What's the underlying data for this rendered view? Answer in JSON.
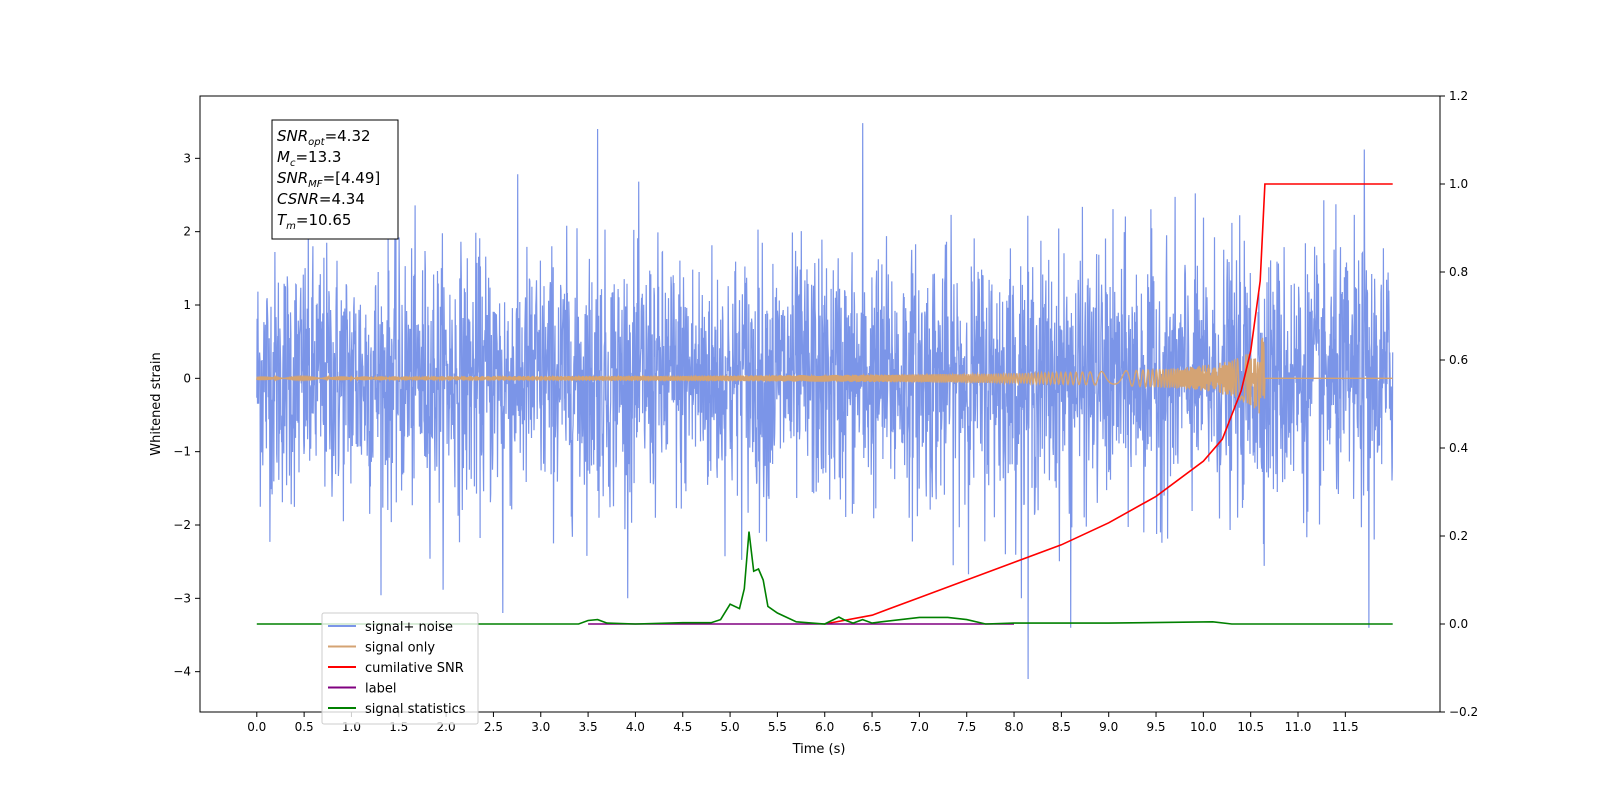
{
  "chart_data": {
    "type": "line",
    "xlabel": "Time (s)",
    "ylabel": "Whitened strain",
    "xlim": [
      -0.6,
      12.5
    ],
    "ylim": [
      -4.55,
      3.85
    ],
    "y2lim": [
      -0.2,
      1.2
    ],
    "x_ticks": [
      0.0,
      0.5,
      1.0,
      1.5,
      2.0,
      2.5,
      3.0,
      3.5,
      4.0,
      4.5,
      5.0,
      5.5,
      6.0,
      6.5,
      7.0,
      7.5,
      8.0,
      8.5,
      9.0,
      9.5,
      10.0,
      10.5,
      11.0,
      11.5
    ],
    "x_tick_labels": [
      "0.0",
      "0.5",
      "1.0",
      "1.5",
      "2.0",
      "2.5",
      "3.0",
      "3.5",
      "4.0",
      "4.5",
      "5.0",
      "5.5",
      "6.0",
      "6.5",
      "7.0",
      "7.5",
      "8.0",
      "8.5",
      "9.0",
      "9.5",
      "10.0",
      "10.5",
      "11.0",
      "11.5"
    ],
    "y_ticks": [
      -4,
      -3,
      -2,
      -1,
      0,
      1,
      2,
      3
    ],
    "y_tick_labels": [
      "−4",
      "−3",
      "−2",
      "−1",
      "0",
      "1",
      "2",
      "3"
    ],
    "y2_ticks": [
      -0.2,
      0.0,
      0.2,
      0.4,
      0.6,
      0.8,
      1.0,
      1.2
    ],
    "y2_tick_labels": [
      "−0.2",
      "0.0",
      "0.2",
      "0.4",
      "0.6",
      "0.8",
      "1.0",
      "1.2"
    ],
    "grid": false,
    "legend_position": "lower-left",
    "annotation": {
      "lines": [
        {
          "main": "SNR",
          "sub": "opt",
          "rest": "=4.32"
        },
        {
          "main": "M",
          "sub": "c",
          "rest": "=13.3"
        },
        {
          "main": "SNR",
          "sub": "MF",
          "rest": "=[4.49]"
        },
        {
          "main": "CSNR",
          "sub": "",
          "rest": "=4.34"
        },
        {
          "main": "T",
          "sub": "m",
          "rest": "=10.65"
        }
      ]
    },
    "noise_model": {
      "t_start": 0.0,
      "t_end": 12.0,
      "envelope_low": -1.8,
      "envelope_high": 1.8,
      "max_peak": 3.48,
      "min_peak": -4.1
    },
    "series": [
      {
        "name": "signal+ noise",
        "color": "#7b95e8",
        "axis": "left",
        "description_peaks": [
          {
            "x": 3.6,
            "y": 3.4
          },
          {
            "x": 6.4,
            "y": 3.48
          },
          {
            "x": 11.7,
            "y": 3.12
          },
          {
            "x": 8.15,
            "y": -4.1
          },
          {
            "x": 11.75,
            "y": -3.4
          },
          {
            "x": 8.6,
            "y": -3.4
          },
          {
            "x": 2.6,
            "y": -3.2
          }
        ]
      },
      {
        "name": "signal only",
        "color": "#d4a373",
        "axis": "left",
        "chirp": {
          "t_start": 0.0,
          "t_merge": 10.65,
          "t_end": 12.0,
          "peak_amplitude": 0.62
        }
      },
      {
        "name": "cumilative SNR",
        "color": "#ff0000",
        "axis": "right",
        "x": [
          6.0,
          6.5,
          7.0,
          7.5,
          8.0,
          8.5,
          9.0,
          9.5,
          10.0,
          10.2,
          10.4,
          10.5,
          10.6,
          10.65,
          11.0,
          11.5,
          12.0
        ],
        "y": [
          0.0,
          0.02,
          0.06,
          0.1,
          0.14,
          0.18,
          0.23,
          0.29,
          0.37,
          0.42,
          0.53,
          0.62,
          0.78,
          1.0,
          1.0,
          1.0,
          1.0
        ]
      },
      {
        "name": "label",
        "color": "#800080",
        "axis": "right",
        "x": [
          3.5,
          8.0
        ],
        "y": [
          0.0,
          0.0
        ]
      },
      {
        "name": "signal statistics",
        "color": "#008000",
        "axis": "right",
        "x": [
          0.0,
          3.4,
          3.5,
          3.6,
          3.7,
          4.0,
          4.5,
          4.8,
          4.9,
          5.0,
          5.1,
          5.15,
          5.2,
          5.25,
          5.3,
          5.35,
          5.4,
          5.5,
          5.7,
          6.0,
          6.15,
          6.2,
          6.3,
          6.4,
          6.5,
          6.6,
          7.0,
          7.3,
          7.5,
          7.7,
          8.0,
          9.0,
          10.1,
          10.3,
          12.0
        ],
        "y": [
          0.0,
          0.0,
          0.008,
          0.01,
          0.002,
          0.0,
          0.003,
          0.003,
          0.01,
          0.045,
          0.035,
          0.08,
          0.21,
          0.12,
          0.125,
          0.1,
          0.04,
          0.025,
          0.005,
          0.0,
          0.016,
          0.01,
          0.002,
          0.01,
          0.002,
          0.005,
          0.015,
          0.015,
          0.01,
          0.0,
          0.002,
          0.002,
          0.005,
          0.0,
          0.0
        ]
      }
    ],
    "legend": [
      "signal+ noise",
      "signal only",
      "cumilative SNR",
      "label",
      "signal statistics"
    ]
  }
}
